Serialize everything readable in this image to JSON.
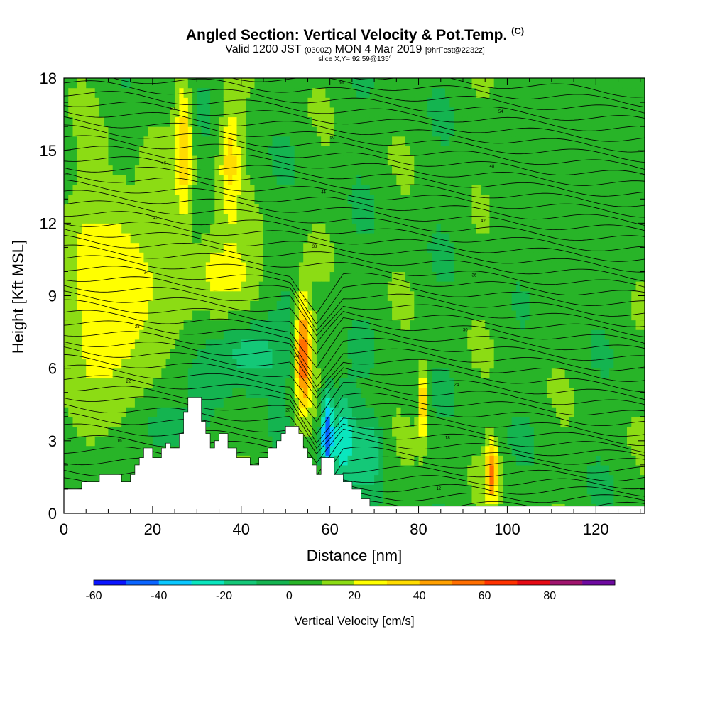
{
  "header": {
    "title": "Angled Section: Vertical Velocity & Pot.Temp.",
    "title_unit": "(C)",
    "subtitle_a": "Valid 1200 JST",
    "subtitle_b": "(0300Z)",
    "subtitle_c": "MON 4 Mar 2019",
    "subtitle_d": "[9hrFcst@2232z]",
    "slice": "slice X,Y= 92,59@135°"
  },
  "chart_data": {
    "type": "heatmap",
    "xlabel": "Distance [nm]",
    "ylabel": "Height [Kft MSL]",
    "xlim": [
      0,
      131
    ],
    "ylim": [
      0,
      18
    ],
    "x_ticks": [
      0,
      20,
      40,
      60,
      80,
      100,
      120
    ],
    "y_ticks": [
      0,
      3,
      6,
      9,
      12,
      15,
      18
    ],
    "terrain_profile": [
      [
        0,
        1.0
      ],
      [
        4,
        1.0
      ],
      [
        4,
        1.3
      ],
      [
        8,
        1.3
      ],
      [
        8,
        1.6
      ],
      [
        13,
        1.6
      ],
      [
        13,
        1.3
      ],
      [
        15,
        1.3
      ],
      [
        15,
        1.6
      ],
      [
        16,
        1.6
      ],
      [
        16,
        2.0
      ],
      [
        17,
        2.0
      ],
      [
        17,
        2.3
      ],
      [
        18,
        2.3
      ],
      [
        18,
        2.7
      ],
      [
        20,
        2.7
      ],
      [
        20,
        2.3
      ],
      [
        22,
        2.3
      ],
      [
        22,
        2.7
      ],
      [
        23,
        2.7
      ],
      [
        23,
        2.9
      ],
      [
        24,
        2.9
      ],
      [
        24,
        2.7
      ],
      [
        26,
        2.7
      ],
      [
        26,
        3.3
      ],
      [
        27,
        3.3
      ],
      [
        27,
        4.2
      ],
      [
        28,
        4.2
      ],
      [
        28,
        4.8
      ],
      [
        31,
        4.8
      ],
      [
        31,
        3.8
      ],
      [
        32,
        3.8
      ],
      [
        32,
        3.3
      ],
      [
        33,
        3.3
      ],
      [
        33,
        2.7
      ],
      [
        34,
        2.7
      ],
      [
        34,
        3.0
      ],
      [
        35,
        3.0
      ],
      [
        35,
        3.3
      ],
      [
        37,
        3.3
      ],
      [
        37,
        2.7
      ],
      [
        39,
        2.7
      ],
      [
        39,
        2.3
      ],
      [
        42,
        2.3
      ],
      [
        42,
        2.0
      ],
      [
        44,
        2.0
      ],
      [
        44,
        2.3
      ],
      [
        46,
        2.3
      ],
      [
        46,
        2.7
      ],
      [
        48,
        2.7
      ],
      [
        48,
        3.0
      ],
      [
        49,
        3.0
      ],
      [
        49,
        3.3
      ],
      [
        50,
        3.3
      ],
      [
        50,
        3.6
      ],
      [
        53,
        3.6
      ],
      [
        53,
        3.3
      ],
      [
        54,
        3.3
      ],
      [
        54,
        2.7
      ],
      [
        55,
        2.7
      ],
      [
        55,
        2.3
      ],
      [
        56,
        2.3
      ],
      [
        56,
        2.0
      ],
      [
        57,
        2.0
      ],
      [
        57,
        1.6
      ],
      [
        58,
        1.6
      ],
      [
        58,
        2.3
      ],
      [
        61,
        2.3
      ],
      [
        61,
        1.6
      ],
      [
        63,
        1.6
      ],
      [
        63,
        1.3
      ],
      [
        65,
        1.3
      ],
      [
        65,
        1.0
      ],
      [
        67,
        1.0
      ],
      [
        67,
        0.6
      ],
      [
        69,
        0.6
      ],
      [
        69,
        0.3
      ],
      [
        131,
        0.3
      ]
    ],
    "vertical_velocity_cm_s": [
      {
        "x": [
          0,
          22
        ],
        "y": [
          4,
          14
        ],
        "w": 30
      },
      {
        "x": [
          25,
          29
        ],
        "y": [
          12,
          18
        ],
        "w": 40
      },
      {
        "x": [
          35,
          40
        ],
        "y": [
          12,
          17
        ],
        "w": 35
      },
      {
        "x": [
          27,
          45
        ],
        "y": [
          8,
          12
        ],
        "w": 25
      },
      {
        "x": [
          16,
          30
        ],
        "y": [
          2,
          5
        ],
        "w": -5
      },
      {
        "x": [
          33,
          52
        ],
        "y": [
          5,
          8
        ],
        "w": -15
      },
      {
        "x": [
          52,
          56
        ],
        "y": [
          4,
          9
        ],
        "w": 60
      },
      {
        "x": [
          58,
          61
        ],
        "y": [
          1.5,
          5
        ],
        "w": -55
      },
      {
        "x": [
          60,
          66
        ],
        "y": [
          1,
          5
        ],
        "w": -30
      },
      {
        "x": [
          65,
          72
        ],
        "y": [
          1,
          4
        ],
        "w": -20
      },
      {
        "x": [
          80,
          82
        ],
        "y": [
          3,
          6
        ],
        "w": 45
      },
      {
        "x": [
          95,
          98
        ],
        "y": [
          0.5,
          3
        ],
        "w": 55
      },
      {
        "x": [
          100,
          131
        ],
        "y": [
          9,
          18
        ],
        "w": 5
      }
    ],
    "pot_temp_labels": [
      "10",
      "12",
      "14",
      "16",
      "18",
      "20",
      "22",
      "24",
      "26",
      "28",
      "30",
      "32",
      "34",
      "36",
      "38",
      "40",
      "42",
      "44",
      "46",
      "48",
      "50",
      "52",
      "54",
      "56",
      "58"
    ],
    "colorbar": {
      "title": "Vertical Velocity [cm/s]",
      "ticks": [
        "-60",
        "-40",
        "-20",
        "0",
        "20",
        "40",
        "60",
        "80"
      ],
      "bins": [
        -60,
        -50,
        -40,
        -30,
        -20,
        -10,
        0,
        10,
        20,
        30,
        40,
        50,
        60,
        70,
        80,
        90
      ],
      "colors": [
        "#0a14ff",
        "#0a64ff",
        "#0ac8ff",
        "#0ae6be",
        "#14c878",
        "#14b450",
        "#28b428",
        "#8cdc14",
        "#ffff00",
        "#ffdc00",
        "#ffa000",
        "#ff6e00",
        "#ff3200",
        "#e60a14",
        "#a0146e",
        "#6e0aa0"
      ]
    }
  }
}
